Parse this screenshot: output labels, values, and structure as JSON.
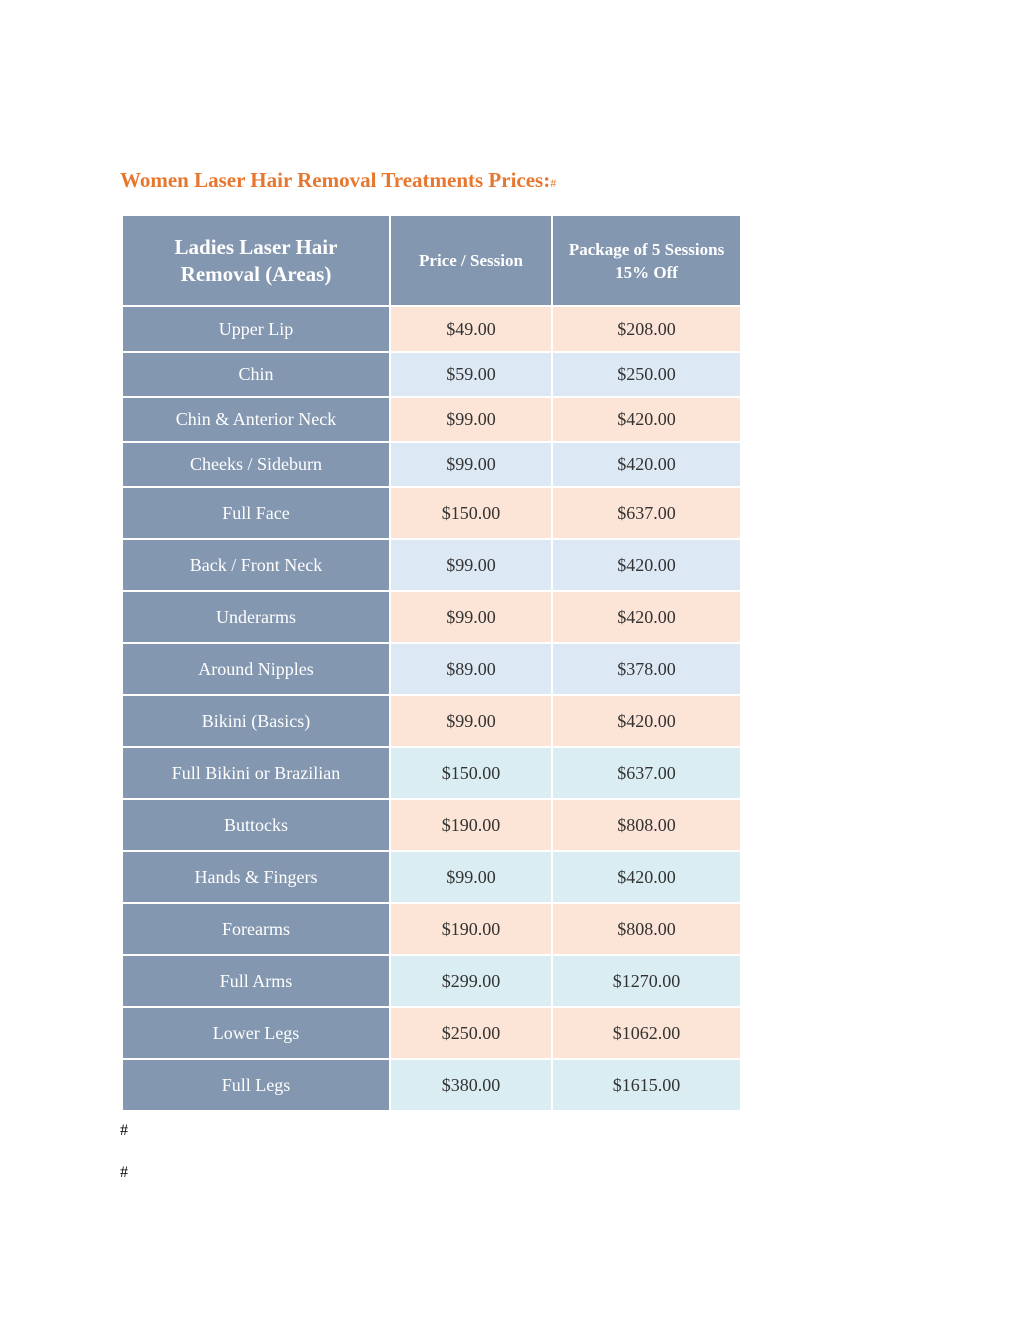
{
  "title": "Women Laser Hair Removal Treatments Prices:",
  "title_mark": "#",
  "columns": [
    "Ladies Laser Hair Removal (Areas)",
    "Price / Session",
    "Package of 5 Sessions 15% Off"
  ],
  "rows": [
    {
      "area": "Upper Lip",
      "price": "$49.00",
      "package": "$208.00",
      "tint": "peach"
    },
    {
      "area": "Chin",
      "price": "$59.00",
      "package": "$250.00",
      "tint": "blue"
    },
    {
      "area": "Chin & Anterior Neck",
      "price": "$99.00",
      "package": "$420.00",
      "tint": "peach"
    },
    {
      "area": "Cheeks / Sideburn",
      "price": "$99.00",
      "package": "$420.00",
      "tint": "blue"
    },
    {
      "area": "Full Face",
      "price": "$150.00",
      "package": "$637.00",
      "tint": "peach"
    },
    {
      "area": "Back / Front Neck",
      "price": "$99.00",
      "package": "$420.00",
      "tint": "blue"
    },
    {
      "area": "Underarms",
      "price": "$99.00",
      "package": "$420.00",
      "tint": "peach"
    },
    {
      "area": "Around Nipples",
      "price": "$89.00",
      "package": "$378.00",
      "tint": "blue"
    },
    {
      "area": "Bikini (Basics)",
      "price": "$99.00",
      "package": "$420.00",
      "tint": "peach"
    },
    {
      "area": "Full Bikini or Brazilian",
      "price": "$150.00",
      "package": "$637.00",
      "tint": "teal"
    },
    {
      "area": "Buttocks",
      "price": "$190.00",
      "package": "$808.00",
      "tint": "peach"
    },
    {
      "area": "Hands & Fingers",
      "price": "$99.00",
      "package": "$420.00",
      "tint": "teal"
    },
    {
      "area": "Forearms",
      "price": "$190.00",
      "package": "$808.00",
      "tint": "peach"
    },
    {
      "area": "Full Arms",
      "price": "$299.00",
      "package": "$1270.00",
      "tint": "teal"
    },
    {
      "area": "Lower Legs",
      "price": "$250.00",
      "package": "$1062.00",
      "tint": "peach"
    },
    {
      "area": "Full Legs",
      "price": "$380.00",
      "package": "$1615.00",
      "tint": "teal"
    }
  ],
  "footer_marks": [
    "#",
    "#"
  ],
  "colors": {
    "title": "#e7772f",
    "header_bg": "#8497b0",
    "peach": "#fce4d6",
    "blue": "#dde8f5",
    "teal": "#daedf3"
  }
}
